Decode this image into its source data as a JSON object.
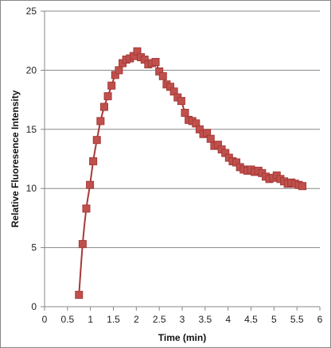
{
  "chart_data": {
    "type": "scatter",
    "title": "",
    "xlabel": "Time (min)",
    "ylabel": "Relative Fluoresence Intensity",
    "xlim": [
      0,
      6
    ],
    "ylim": [
      0,
      25
    ],
    "x_ticks": [
      0,
      0.5,
      1,
      1.5,
      2,
      2.5,
      3,
      3.5,
      4,
      4.5,
      5,
      5.5,
      6
    ],
    "y_ticks": [
      0,
      5,
      10,
      15,
      20,
      25
    ],
    "grid": {
      "horizontal": true,
      "vertical": false
    },
    "legend": "none",
    "series": [
      {
        "marker": "square",
        "line": "smooth",
        "color": "#c0504d",
        "marker_edge_color": "#a53a37",
        "x": [
          0.75,
          0.83,
          0.91,
          0.99,
          1.06,
          1.14,
          1.22,
          1.3,
          1.38,
          1.46,
          1.54,
          1.62,
          1.7,
          1.78,
          1.86,
          1.94,
          2.02,
          2.1,
          2.18,
          2.26,
          2.34,
          2.42,
          2.5,
          2.58,
          2.66,
          2.74,
          2.82,
          2.9,
          2.98,
          3.06,
          3.14,
          3.22,
          3.3,
          3.38,
          3.46,
          3.54,
          3.62,
          3.7,
          3.78,
          3.86,
          3.94,
          4.02,
          4.1,
          4.18,
          4.26,
          4.34,
          4.42,
          4.5,
          4.58,
          4.66,
          4.74,
          4.82,
          4.9,
          4.98,
          5.06,
          5.14,
          5.22,
          5.3,
          5.38,
          5.46,
          5.54,
          5.62
        ],
        "y": [
          1.0,
          5.3,
          8.3,
          10.3,
          12.3,
          14.1,
          15.7,
          16.9,
          17.8,
          18.7,
          19.6,
          20.0,
          20.6,
          20.9,
          21.0,
          21.2,
          21.6,
          21.1,
          20.9,
          20.5,
          20.6,
          20.7,
          19.9,
          19.5,
          18.8,
          18.6,
          18.2,
          17.7,
          17.4,
          16.4,
          15.8,
          15.7,
          15.5,
          15.0,
          14.6,
          14.7,
          14.2,
          13.6,
          13.7,
          13.3,
          13.0,
          12.6,
          12.3,
          12.2,
          11.8,
          11.6,
          11.5,
          11.6,
          11.4,
          11.5,
          11.3,
          11.0,
          10.8,
          10.9,
          11.1,
          10.8,
          10.6,
          10.4,
          10.5,
          10.4,
          10.3,
          10.2
        ]
      }
    ]
  }
}
